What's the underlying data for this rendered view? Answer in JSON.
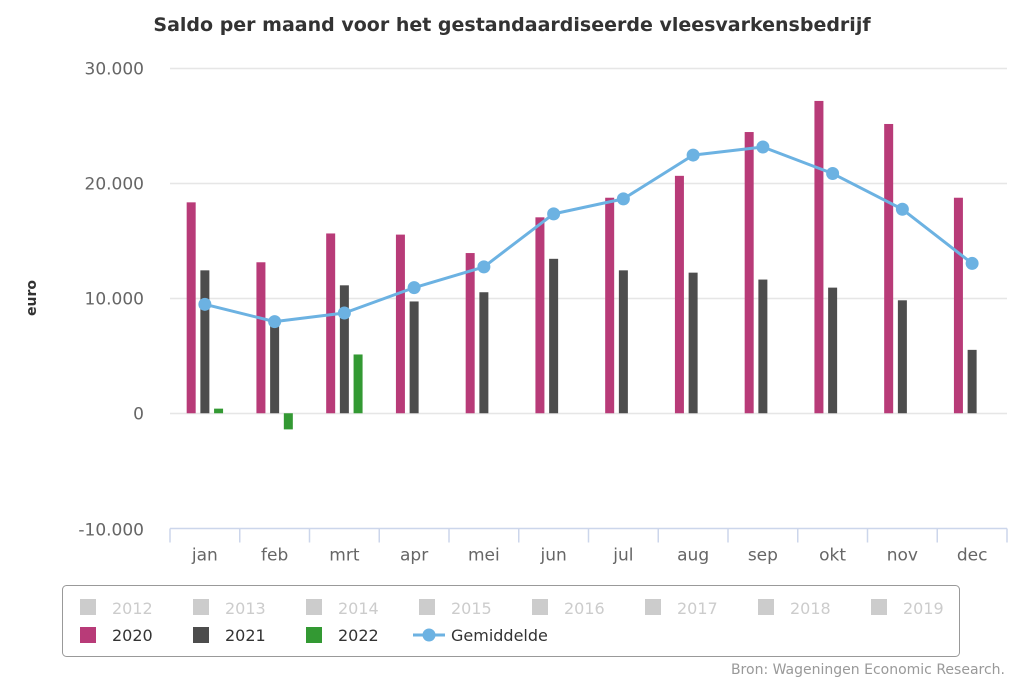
{
  "chart_data": {
    "type": "bar",
    "title": "Saldo per maand voor het gestandaardiseerde vleesvarkensbedrijf",
    "xlabel": "",
    "ylabel": "euro",
    "ylim": [
      -10000,
      30000
    ],
    "yticks": [
      -10000,
      0,
      10000,
      20000,
      30000
    ],
    "ytick_labels": [
      "-10.000",
      "0",
      "10.000",
      "20.000",
      "30.000"
    ],
    "grid": true,
    "categories": [
      "jan",
      "feb",
      "mrt",
      "apr",
      "mei",
      "jun",
      "jul",
      "aug",
      "sep",
      "okt",
      "nov",
      "dec"
    ],
    "series": [
      {
        "name": "2020",
        "type": "bar",
        "color": "#b83b78",
        "values": [
          18300,
          13100,
          15600,
          15500,
          13900,
          17000,
          18700,
          20600,
          24400,
          27100,
          25100,
          18700
        ]
      },
      {
        "name": "2021",
        "type": "bar",
        "color": "#4d4d4d",
        "values": [
          12400,
          8000,
          11100,
          9700,
          10500,
          13400,
          12400,
          12200,
          11600,
          10900,
          9800,
          5500
        ]
      },
      {
        "name": "2022",
        "type": "bar",
        "color": "#339933",
        "values": [
          400,
          -1400,
          5100,
          null,
          null,
          null,
          null,
          null,
          null,
          null,
          null,
          null
        ]
      },
      {
        "name": "Gemiddelde",
        "type": "line",
        "color": "#6cb2e2",
        "values": [
          9450,
          7950,
          8700,
          10900,
          12700,
          17300,
          18600,
          22400,
          23100,
          20800,
          17700,
          13000
        ]
      }
    ],
    "legend": {
      "placement": "bottom",
      "hidden_items": [
        "2012",
        "2013",
        "2014",
        "2015",
        "2016",
        "2017",
        "2018",
        "2019"
      ],
      "active_items": [
        "2020",
        "2021",
        "2022",
        "Gemiddelde"
      ],
      "hidden_color": "#cccccc"
    },
    "credit": "Bron: Wageningen Economic Research."
  }
}
